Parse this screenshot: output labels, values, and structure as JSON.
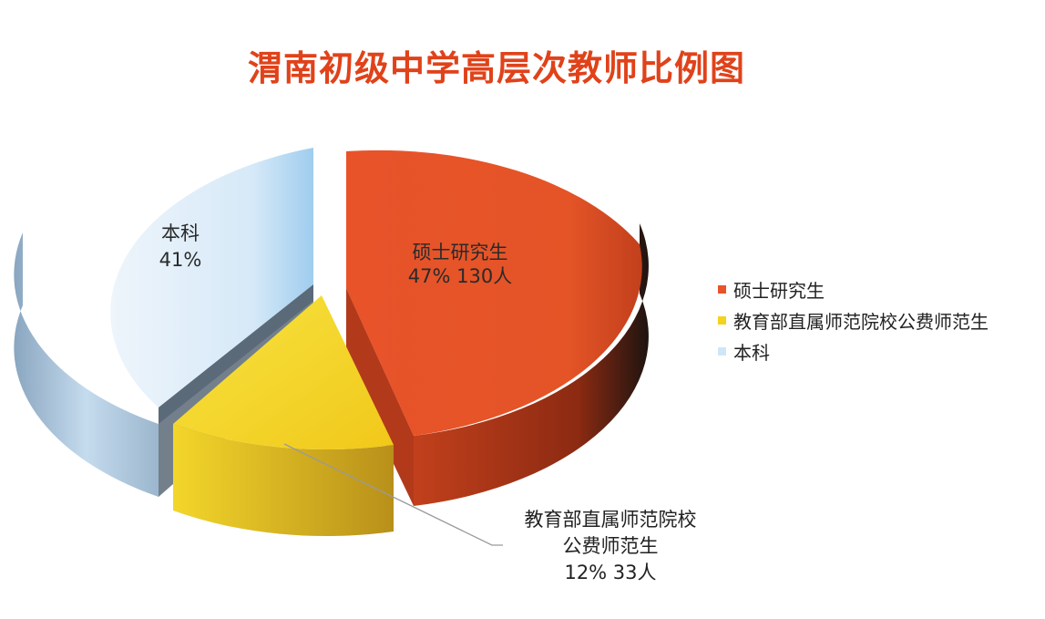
{
  "chart_data": {
    "type": "pie",
    "title": "渭南初级中学高层次教师比例图",
    "slices": [
      {
        "name": "硕士研究生",
        "percent": 47,
        "count_label": "130人",
        "color": "#e8532a",
        "color_dark": "#a8351a"
      },
      {
        "name": "教育部直属师范院校公费师范生",
        "label_line1": "教育部直属师范院校",
        "label_line2": "公费师范生",
        "percent": 12,
        "count_label": "33人",
        "color": "#f5d21d",
        "color_dark": "#c9a40e"
      },
      {
        "name": "本科",
        "percent": 41,
        "count_label": "",
        "color": "#cfe6f7",
        "color_dark": "#7f9fb8"
      }
    ],
    "legend_placement": "right",
    "style": "3d-exploded"
  },
  "labels": {
    "master_name": "硕士研究生",
    "master_value": "47%  130人",
    "undergrad_name": "本科",
    "undergrad_value": "41%",
    "normal_line1": "教育部直属师范院校",
    "normal_line2": "公费师范生",
    "normal_value": "12%  33人"
  }
}
